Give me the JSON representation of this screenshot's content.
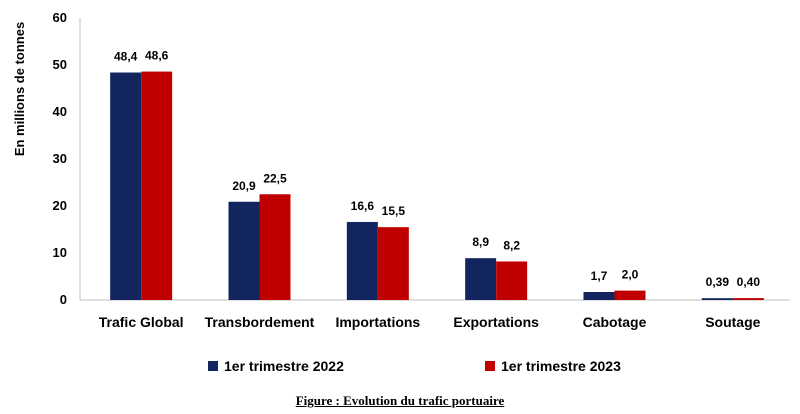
{
  "chart_data": {
    "type": "bar",
    "categories": [
      "Trafic Global",
      "Transbordement",
      "Importations",
      "Exportations",
      "Cabotage",
      "Soutage"
    ],
    "series": [
      {
        "name": "1er trimestre 2022",
        "values": [
          48.4,
          20.9,
          16.6,
          8.9,
          1.7,
          0.39
        ],
        "labels": [
          "48,4",
          "20,9",
          "16,6",
          "8,9",
          "1,7",
          "0,39"
        ],
        "color": "#12255f"
      },
      {
        "name": "1er trimestre 2023",
        "values": [
          48.6,
          22.5,
          15.5,
          8.2,
          2.0,
          0.4
        ],
        "labels": [
          "48,6",
          "22,5",
          "15,5",
          "8,2",
          "2,0",
          "0,40"
        ],
        "color": "#c00000"
      }
    ],
    "ylabel": "En millions de tonnes",
    "ylim": [
      0,
      60
    ],
    "yticks": [
      "0",
      "10",
      "20",
      "30",
      "40",
      "50",
      "60"
    ],
    "grid": false,
    "legend": "bottom"
  },
  "caption": "Figure : Evolution du trafic portuaire"
}
